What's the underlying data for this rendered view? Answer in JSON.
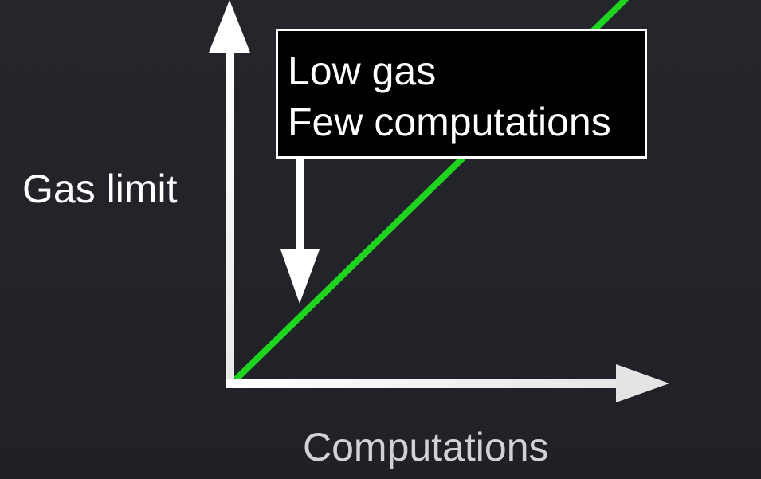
{
  "diagram": {
    "y_axis_label": "Gas limit",
    "x_axis_label": "Computations",
    "callout": {
      "line1": "Low gas",
      "line2": "Few computations"
    },
    "colors": {
      "background": "#23252b",
      "axes": "#ffffff",
      "line": "#1ed41e",
      "callout_bg": "#000000",
      "callout_border": "#ffffff"
    }
  }
}
